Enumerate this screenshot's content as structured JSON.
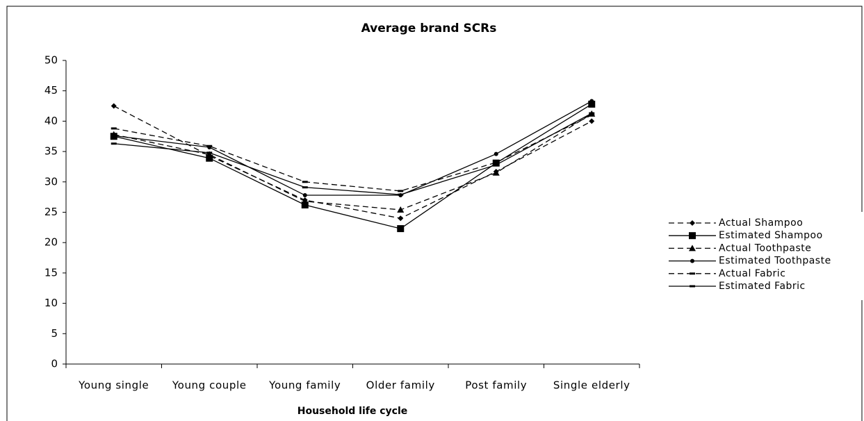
{
  "chart_data": {
    "type": "line",
    "title": "Average brand SCRs",
    "x_label": "Household life cycle",
    "categories": [
      "Young single",
      "Young couple",
      "Young family",
      "Older family",
      "Post family",
      "Single elderly"
    ],
    "ylim": [
      0,
      50
    ],
    "yticks": [
      0,
      5,
      10,
      15,
      20,
      25,
      30,
      35,
      40,
      45,
      50
    ],
    "legend": "right",
    "series": [
      {
        "name": "Actual Shampoo",
        "color": "#000000",
        "dashed": true,
        "marker": "diamond",
        "values": [
          42.5,
          34.3,
          27.0,
          24.0,
          31.7,
          40.0
        ]
      },
      {
        "name": "Estimated Shampoo",
        "color": "#000000",
        "dashed": false,
        "marker": "square",
        "values": [
          37.5,
          33.9,
          26.2,
          22.3,
          33.1,
          42.8
        ]
      },
      {
        "name": "Actual Toothpaste",
        "color": "#000000",
        "dashed": true,
        "marker": "triangle",
        "values": [
          37.8,
          34.5,
          26.8,
          25.4,
          31.5,
          41.2
        ]
      },
      {
        "name": "Estimated Toothpaste",
        "color": "#000000",
        "dashed": false,
        "marker": "circle",
        "values": [
          37.6,
          35.7,
          27.8,
          27.8,
          34.6,
          43.3
        ]
      },
      {
        "name": "Actual Fabric",
        "color": "#000000",
        "dashed": true,
        "marker": "dash",
        "values": [
          38.8,
          35.9,
          30.0,
          28.5,
          33.2,
          41.0
        ]
      },
      {
        "name": "Estimated Fabric",
        "color": "#000000",
        "dashed": false,
        "marker": "dash",
        "values": [
          36.3,
          34.8,
          29.1,
          27.9,
          32.8,
          41.3
        ]
      }
    ]
  }
}
